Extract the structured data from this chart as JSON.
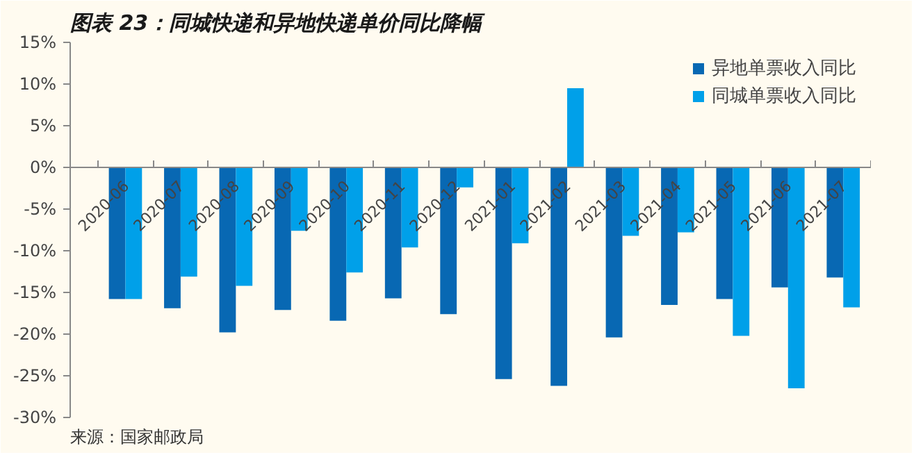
{
  "chart_data": {
    "type": "bar",
    "title": "图表 23：同城快递和异地快递单价同比降幅",
    "categories": [
      "2020-06",
      "2020-07",
      "2020-08",
      "2020-09",
      "2020-10",
      "2020-11",
      "2020-12",
      "2021-01",
      "2021-02",
      "2021-03",
      "2021-04",
      "2021-05",
      "2021-06",
      "2021-07"
    ],
    "series": [
      {
        "name": "异地单票收入同比",
        "color": "#0868b3",
        "values": [
          -15.8,
          -16.9,
          -19.8,
          -17.1,
          -18.4,
          -15.7,
          -17.6,
          -25.4,
          -26.2,
          -20.4,
          -16.5,
          -15.8,
          -14.4,
          -13.2
        ]
      },
      {
        "name": "同城单票收入同比",
        "color": "#00a0e9",
        "values": [
          -15.8,
          -13.1,
          -14.2,
          -7.6,
          -12.6,
          -9.6,
          -2.4,
          -9.1,
          9.5,
          -8.2,
          -7.8,
          -20.2,
          -26.5,
          -16.8
        ]
      }
    ],
    "ylim": [
      -30,
      15
    ],
    "yticks": [
      {
        "value": -30,
        "label": "-30%"
      },
      {
        "value": -25,
        "label": "-25%"
      },
      {
        "value": -20,
        "label": "-20%"
      },
      {
        "value": -15,
        "label": "-15%"
      },
      {
        "value": -10,
        "label": "-10%"
      },
      {
        "value": -5,
        "label": "-5%"
      },
      {
        "value": 0,
        "label": "0%"
      },
      {
        "value": 5,
        "label": "5%"
      },
      {
        "value": 10,
        "label": "10%"
      },
      {
        "value": 15,
        "label": "15%"
      }
    ],
    "grid": false,
    "legend": "top right",
    "annotations": [
      "来源：国家邮政局"
    ]
  }
}
